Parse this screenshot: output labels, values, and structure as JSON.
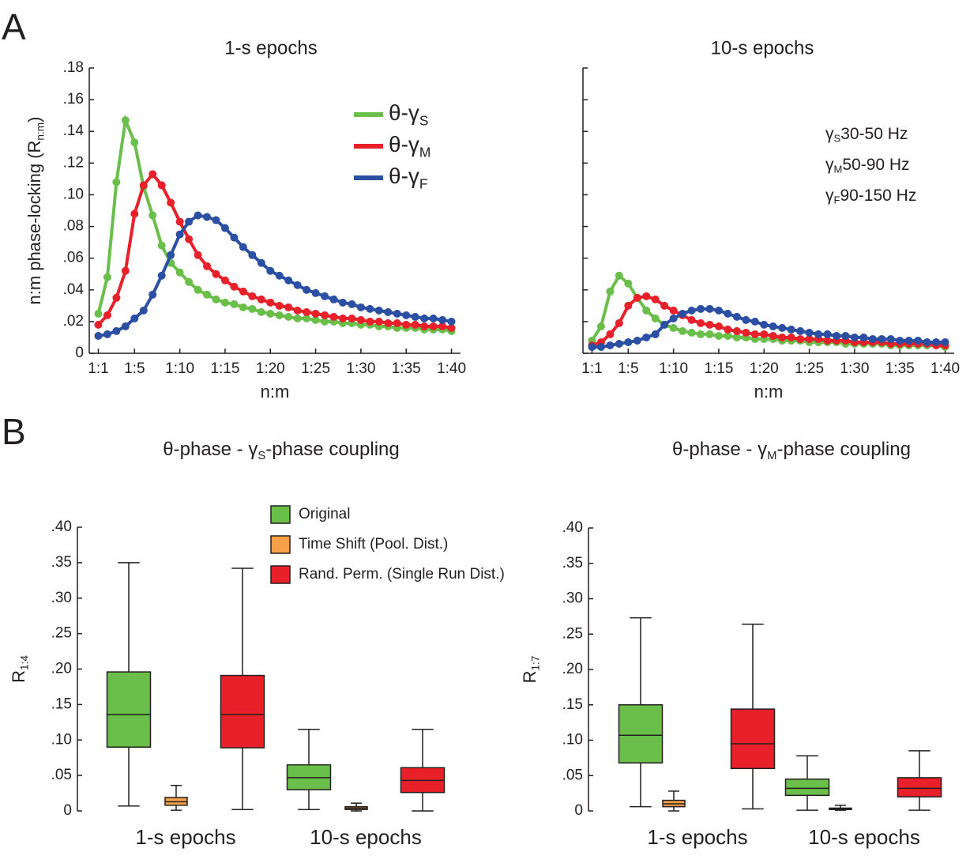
{
  "panels": [
    "A",
    "B"
  ],
  "chart_data": [
    {
      "type": "line",
      "title": "1-s epochs",
      "x_label": "n:m",
      "y_label": {
        "text": "n:m phase-locking (R",
        "sub": "n:m",
        "end": ")"
      },
      "x": [
        1,
        2,
        3,
        4,
        5,
        6,
        7,
        8,
        9,
        10,
        11,
        12,
        13,
        14,
        15,
        16,
        17,
        18,
        19,
        20,
        21,
        22,
        23,
        24,
        25,
        26,
        27,
        28,
        29,
        30,
        31,
        32,
        33,
        34,
        35,
        36,
        37,
        38,
        39,
        40
      ],
      "xlim": [
        0,
        41
      ],
      "xticks": [
        {
          "value": 1,
          "label": "1:1"
        },
        {
          "value": 5,
          "label": "1:5"
        },
        {
          "value": 10,
          "label": "1:10"
        },
        {
          "value": 15,
          "label": "1:15"
        },
        {
          "value": 20,
          "label": "1:20"
        },
        {
          "value": 25,
          "label": "1:25"
        },
        {
          "value": 30,
          "label": "1:30"
        },
        {
          "value": 35,
          "label": "1:35"
        },
        {
          "value": 40,
          "label": "1:40"
        }
      ],
      "ylim": [
        0,
        0.18
      ],
      "yticks": [
        0,
        {
          "value": 0.02,
          "label": ".02"
        },
        {
          "value": 0.04,
          "label": ".04"
        },
        {
          "value": 0.06,
          "label": ".06"
        },
        {
          "value": 0.08,
          "label": ".08"
        },
        {
          "value": 0.1,
          "label": ".10"
        },
        {
          "value": 0.12,
          "label": ".12"
        },
        {
          "value": 0.14,
          "label": ".14"
        },
        {
          "value": 0.16,
          "label": ".16"
        },
        {
          "value": 0.18,
          "label": ".18"
        }
      ],
      "legend": true,
      "series": [
        {
          "name": "θ-γ",
          "name_sub": "S",
          "color": "#6abf4b",
          "values": [
            0.025,
            0.048,
            0.108,
            0.147,
            0.133,
            0.105,
            0.087,
            0.068,
            0.057,
            0.051,
            0.045,
            0.04,
            0.037,
            0.034,
            0.032,
            0.031,
            0.029,
            0.028,
            0.026,
            0.025,
            0.024,
            0.023,
            0.022,
            0.022,
            0.021,
            0.02,
            0.02,
            0.019,
            0.019,
            0.018,
            0.018,
            0.017,
            0.017,
            0.016,
            0.016,
            0.016,
            0.015,
            0.015,
            0.015,
            0.014
          ]
        },
        {
          "name": "θ-γ",
          "name_sub": "M",
          "color": "#e8202a",
          "values": [
            0.018,
            0.024,
            0.035,
            0.052,
            0.088,
            0.106,
            0.113,
            0.106,
            0.095,
            0.083,
            0.072,
            0.062,
            0.055,
            0.05,
            0.046,
            0.042,
            0.039,
            0.036,
            0.034,
            0.032,
            0.03,
            0.029,
            0.027,
            0.026,
            0.025,
            0.024,
            0.023,
            0.022,
            0.022,
            0.021,
            0.02,
            0.02,
            0.019,
            0.019,
            0.018,
            0.018,
            0.017,
            0.017,
            0.017,
            0.016
          ]
        },
        {
          "name": "θ-γ",
          "name_sub": "F",
          "color": "#2b4fa2",
          "values": [
            0.011,
            0.012,
            0.014,
            0.017,
            0.022,
            0.027,
            0.037,
            0.049,
            0.062,
            0.075,
            0.083,
            0.087,
            0.086,
            0.084,
            0.079,
            0.073,
            0.067,
            0.062,
            0.057,
            0.052,
            0.049,
            0.046,
            0.043,
            0.04,
            0.038,
            0.036,
            0.034,
            0.032,
            0.031,
            0.029,
            0.028,
            0.027,
            0.026,
            0.025,
            0.024,
            0.023,
            0.022,
            0.022,
            0.021,
            0.02
          ]
        }
      ]
    },
    {
      "type": "line",
      "title": "10-s epochs",
      "x_label": "n:m",
      "x": [
        1,
        2,
        3,
        4,
        5,
        6,
        7,
        8,
        9,
        10,
        11,
        12,
        13,
        14,
        15,
        16,
        17,
        18,
        19,
        20,
        21,
        22,
        23,
        24,
        25,
        26,
        27,
        28,
        29,
        30,
        31,
        32,
        33,
        34,
        35,
        36,
        37,
        38,
        39,
        40
      ],
      "xlim": [
        0,
        41
      ],
      "xticks": [
        {
          "value": 1,
          "label": "1:1"
        },
        {
          "value": 5,
          "label": "1:5"
        },
        {
          "value": 10,
          "label": "1:10"
        },
        {
          "value": 15,
          "label": "1:15"
        },
        {
          "value": 20,
          "label": "1:20"
        },
        {
          "value": 25,
          "label": "1:25"
        },
        {
          "value": 30,
          "label": "1:30"
        },
        {
          "value": 35,
          "label": "1:35"
        },
        {
          "value": 40,
          "label": "1:40"
        }
      ],
      "ylim": [
        0,
        0.18
      ],
      "yticks": [
        0,
        0.02,
        0.04,
        0.06,
        0.08,
        0.1,
        0.12,
        0.14,
        0.16,
        0.18
      ],
      "ytick_labels": false,
      "annotations": [
        {
          "symbol": "γ",
          "sub": "S",
          "text": "30-50 Hz"
        },
        {
          "symbol": "γ",
          "sub": "M",
          "text": "50-90 Hz"
        },
        {
          "symbol": "γ",
          "sub": "F",
          "text": "90-150 Hz"
        }
      ],
      "series": [
        {
          "color": "#6abf4b",
          "values": [
            0.008,
            0.017,
            0.039,
            0.049,
            0.044,
            0.035,
            0.027,
            0.022,
            0.018,
            0.016,
            0.014,
            0.013,
            0.012,
            0.012,
            0.011,
            0.011,
            0.01,
            0.01,
            0.009,
            0.009,
            0.009,
            0.008,
            0.008,
            0.008,
            0.007,
            0.007,
            0.007,
            0.007,
            0.006,
            0.006,
            0.006,
            0.006,
            0.006,
            0.005,
            0.005,
            0.005,
            0.005,
            0.005,
            0.005,
            0.004
          ]
        },
        {
          "color": "#e8202a",
          "values": [
            0.005,
            0.007,
            0.012,
            0.019,
            0.03,
            0.035,
            0.036,
            0.034,
            0.03,
            0.027,
            0.024,
            0.021,
            0.019,
            0.018,
            0.017,
            0.015,
            0.014,
            0.013,
            0.012,
            0.012,
            0.011,
            0.01,
            0.01,
            0.009,
            0.009,
            0.009,
            0.008,
            0.008,
            0.008,
            0.007,
            0.007,
            0.007,
            0.007,
            0.006,
            0.006,
            0.006,
            0.006,
            0.006,
            0.005,
            0.005
          ]
        },
        {
          "color": "#2b4fa2",
          "values": [
            0.004,
            0.004,
            0.005,
            0.006,
            0.007,
            0.008,
            0.01,
            0.012,
            0.018,
            0.022,
            0.025,
            0.027,
            0.028,
            0.028,
            0.027,
            0.025,
            0.023,
            0.021,
            0.02,
            0.018,
            0.017,
            0.016,
            0.015,
            0.014,
            0.013,
            0.012,
            0.012,
            0.011,
            0.011,
            0.01,
            0.01,
            0.009,
            0.009,
            0.009,
            0.008,
            0.008,
            0.008,
            0.007,
            0.007,
            0.007
          ]
        }
      ]
    },
    {
      "type": "box",
      "title": {
        "text": "θ-phase - γ",
        "sub": "S",
        "end": "-phase coupling"
      },
      "y_label": {
        "text": "R",
        "sub": "1:4"
      },
      "categories": [
        "1-s epochs",
        "10-s epochs"
      ],
      "ylim": [
        0,
        0.4
      ],
      "yticks": [
        0,
        {
          "value": 0.05,
          "label": ".05"
        },
        {
          "value": 0.1,
          "label": ".10"
        },
        {
          "value": 0.15,
          "label": ".15"
        },
        {
          "value": 0.2,
          "label": ".20"
        },
        {
          "value": 0.25,
          "label": ".25"
        },
        {
          "value": 0.3,
          "label": ".30"
        },
        {
          "value": 0.35,
          "label": ".35"
        },
        {
          "value": 0.4,
          "label": ".40"
        }
      ],
      "legend": true,
      "series": [
        {
          "name": "Original",
          "color": "#6abf4b",
          "values": [
            {
              "min": 0.007,
              "q1": 0.09,
              "median": 0.136,
              "q3": 0.196,
              "max": 0.35
            },
            {
              "min": 0.002,
              "q1": 0.03,
              "median": 0.047,
              "q3": 0.065,
              "max": 0.115
            }
          ]
        },
        {
          "name": "Time Shift (Pool. Dist.)",
          "color": "#f7a04a",
          "values": [
            {
              "min": 0.001,
              "q1": 0.008,
              "median": 0.013,
              "q3": 0.019,
              "max": 0.036
            },
            {
              "min": 0.0,
              "q1": 0.002,
              "median": 0.004,
              "q3": 0.006,
              "max": 0.011
            }
          ]
        },
        {
          "name": "Rand. Perm. (Single Run Dist.)",
          "color": "#e8202a",
          "values": [
            {
              "min": 0.002,
              "q1": 0.089,
              "median": 0.136,
              "q3": 0.191,
              "max": 0.342
            },
            {
              "min": 0.0,
              "q1": 0.026,
              "median": 0.043,
              "q3": 0.061,
              "max": 0.115
            }
          ]
        }
      ]
    },
    {
      "type": "box",
      "title": {
        "text": "θ-phase - γ",
        "sub": "M",
        "end": "-phase coupling"
      },
      "y_label": {
        "text": "R",
        "sub": "1:7"
      },
      "categories": [
        "1-s epochs",
        "10-s epochs"
      ],
      "ylim": [
        0,
        0.4
      ],
      "yticks": [
        0,
        {
          "value": 0.05,
          "label": ".05"
        },
        {
          "value": 0.1,
          "label": ".10"
        },
        {
          "value": 0.15,
          "label": ".15"
        },
        {
          "value": 0.2,
          "label": ".20"
        },
        {
          "value": 0.25,
          "label": ".25"
        },
        {
          "value": 0.3,
          "label": ".30"
        },
        {
          "value": 0.35,
          "label": ".35"
        },
        {
          "value": 0.4,
          "label": ".40"
        }
      ],
      "series": [
        {
          "color": "#6abf4b",
          "values": [
            {
              "min": 0.006,
              "q1": 0.068,
              "median": 0.107,
              "q3": 0.15,
              "max": 0.273
            },
            {
              "min": 0.001,
              "q1": 0.022,
              "median": 0.032,
              "q3": 0.045,
              "max": 0.078
            }
          ]
        },
        {
          "color": "#f7a04a",
          "values": [
            {
              "min": 0.0,
              "q1": 0.006,
              "median": 0.01,
              "q3": 0.015,
              "max": 0.028
            },
            {
              "min": 0.001,
              "q1": 0.002,
              "median": 0.003,
              "q3": 0.004,
              "max": 0.008
            }
          ]
        },
        {
          "color": "#e8202a",
          "values": [
            {
              "min": 0.003,
              "q1": 0.06,
              "median": 0.095,
              "q3": 0.144,
              "max": 0.264
            },
            {
              "min": 0.001,
              "q1": 0.02,
              "median": 0.032,
              "q3": 0.047,
              "max": 0.085
            }
          ]
        }
      ]
    }
  ]
}
